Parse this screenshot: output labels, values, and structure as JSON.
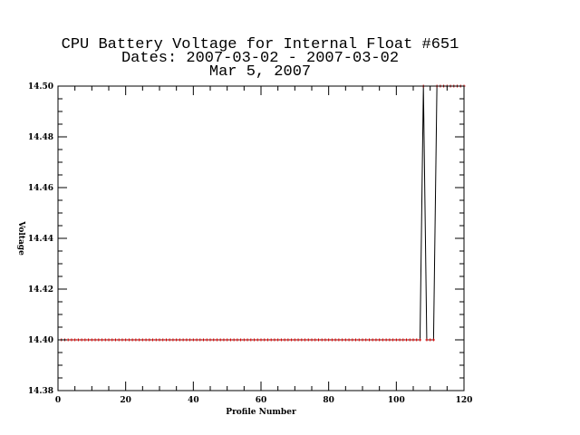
{
  "chart_data": {
    "type": "line",
    "title": "CPU Battery Voltage for Internal Float #651",
    "subtitle": "Dates:  2007-03-02 -  2007-03-02",
    "date": "Mar  5, 2007",
    "xlabel": "Profile Number",
    "ylabel": "Voltage",
    "xlim": [
      0,
      120
    ],
    "ylim": [
      14.38,
      14.5
    ],
    "xticks": [
      "0",
      "20",
      "40",
      "60",
      "80",
      "100",
      "120"
    ],
    "yticks": [
      "14.38",
      "14.40",
      "14.42",
      "14.44",
      "14.46",
      "14.48",
      "14.50"
    ],
    "grid": false,
    "line_color": "#000000",
    "marker_color": "#cc0000",
    "series": [
      {
        "x": [
          1,
          2,
          3,
          4,
          5,
          6,
          7,
          8,
          9,
          10,
          11,
          12,
          13,
          14,
          15,
          16,
          17,
          18,
          19,
          20,
          21,
          22,
          23,
          24,
          25,
          26,
          27,
          28,
          29,
          30,
          31,
          32,
          33,
          34,
          35,
          36,
          37,
          38,
          39,
          40,
          41,
          42,
          43,
          44,
          45,
          46,
          47,
          48,
          49,
          50,
          51,
          52,
          53,
          54,
          55,
          56,
          57,
          58,
          59,
          60,
          61,
          62,
          63,
          64,
          65,
          66,
          67,
          68,
          69,
          70,
          71,
          72,
          73,
          74,
          75,
          76,
          77,
          78,
          79,
          80,
          81,
          82,
          83,
          84,
          85,
          86,
          87,
          88,
          89,
          90,
          91,
          92,
          93,
          94,
          95,
          96,
          97,
          98,
          99,
          100,
          101,
          102,
          103,
          104,
          105,
          106,
          107,
          108,
          109,
          110,
          111,
          112,
          113,
          114,
          115,
          116,
          117,
          118,
          119,
          120
        ],
        "y": [
          14.4,
          14.4,
          14.4,
          14.4,
          14.4,
          14.4,
          14.4,
          14.4,
          14.4,
          14.4,
          14.4,
          14.4,
          14.4,
          14.4,
          14.4,
          14.4,
          14.4,
          14.4,
          14.4,
          14.4,
          14.4,
          14.4,
          14.4,
          14.4,
          14.4,
          14.4,
          14.4,
          14.4,
          14.4,
          14.4,
          14.4,
          14.4,
          14.4,
          14.4,
          14.4,
          14.4,
          14.4,
          14.4,
          14.4,
          14.4,
          14.4,
          14.4,
          14.4,
          14.4,
          14.4,
          14.4,
          14.4,
          14.4,
          14.4,
          14.4,
          14.4,
          14.4,
          14.4,
          14.4,
          14.4,
          14.4,
          14.4,
          14.4,
          14.4,
          14.4,
          14.4,
          14.4,
          14.4,
          14.4,
          14.4,
          14.4,
          14.4,
          14.4,
          14.4,
          14.4,
          14.4,
          14.4,
          14.4,
          14.4,
          14.4,
          14.4,
          14.4,
          14.4,
          14.4,
          14.4,
          14.4,
          14.4,
          14.4,
          14.4,
          14.4,
          14.4,
          14.4,
          14.4,
          14.4,
          14.4,
          14.4,
          14.4,
          14.4,
          14.4,
          14.4,
          14.4,
          14.4,
          14.4,
          14.4,
          14.4,
          14.4,
          14.4,
          14.4,
          14.4,
          14.4,
          14.4,
          14.4,
          14.5,
          14.4,
          14.4,
          14.4,
          14.5,
          14.5,
          14.5,
          14.5,
          14.5,
          14.5,
          14.5,
          14.5,
          14.5
        ]
      }
    ]
  }
}
